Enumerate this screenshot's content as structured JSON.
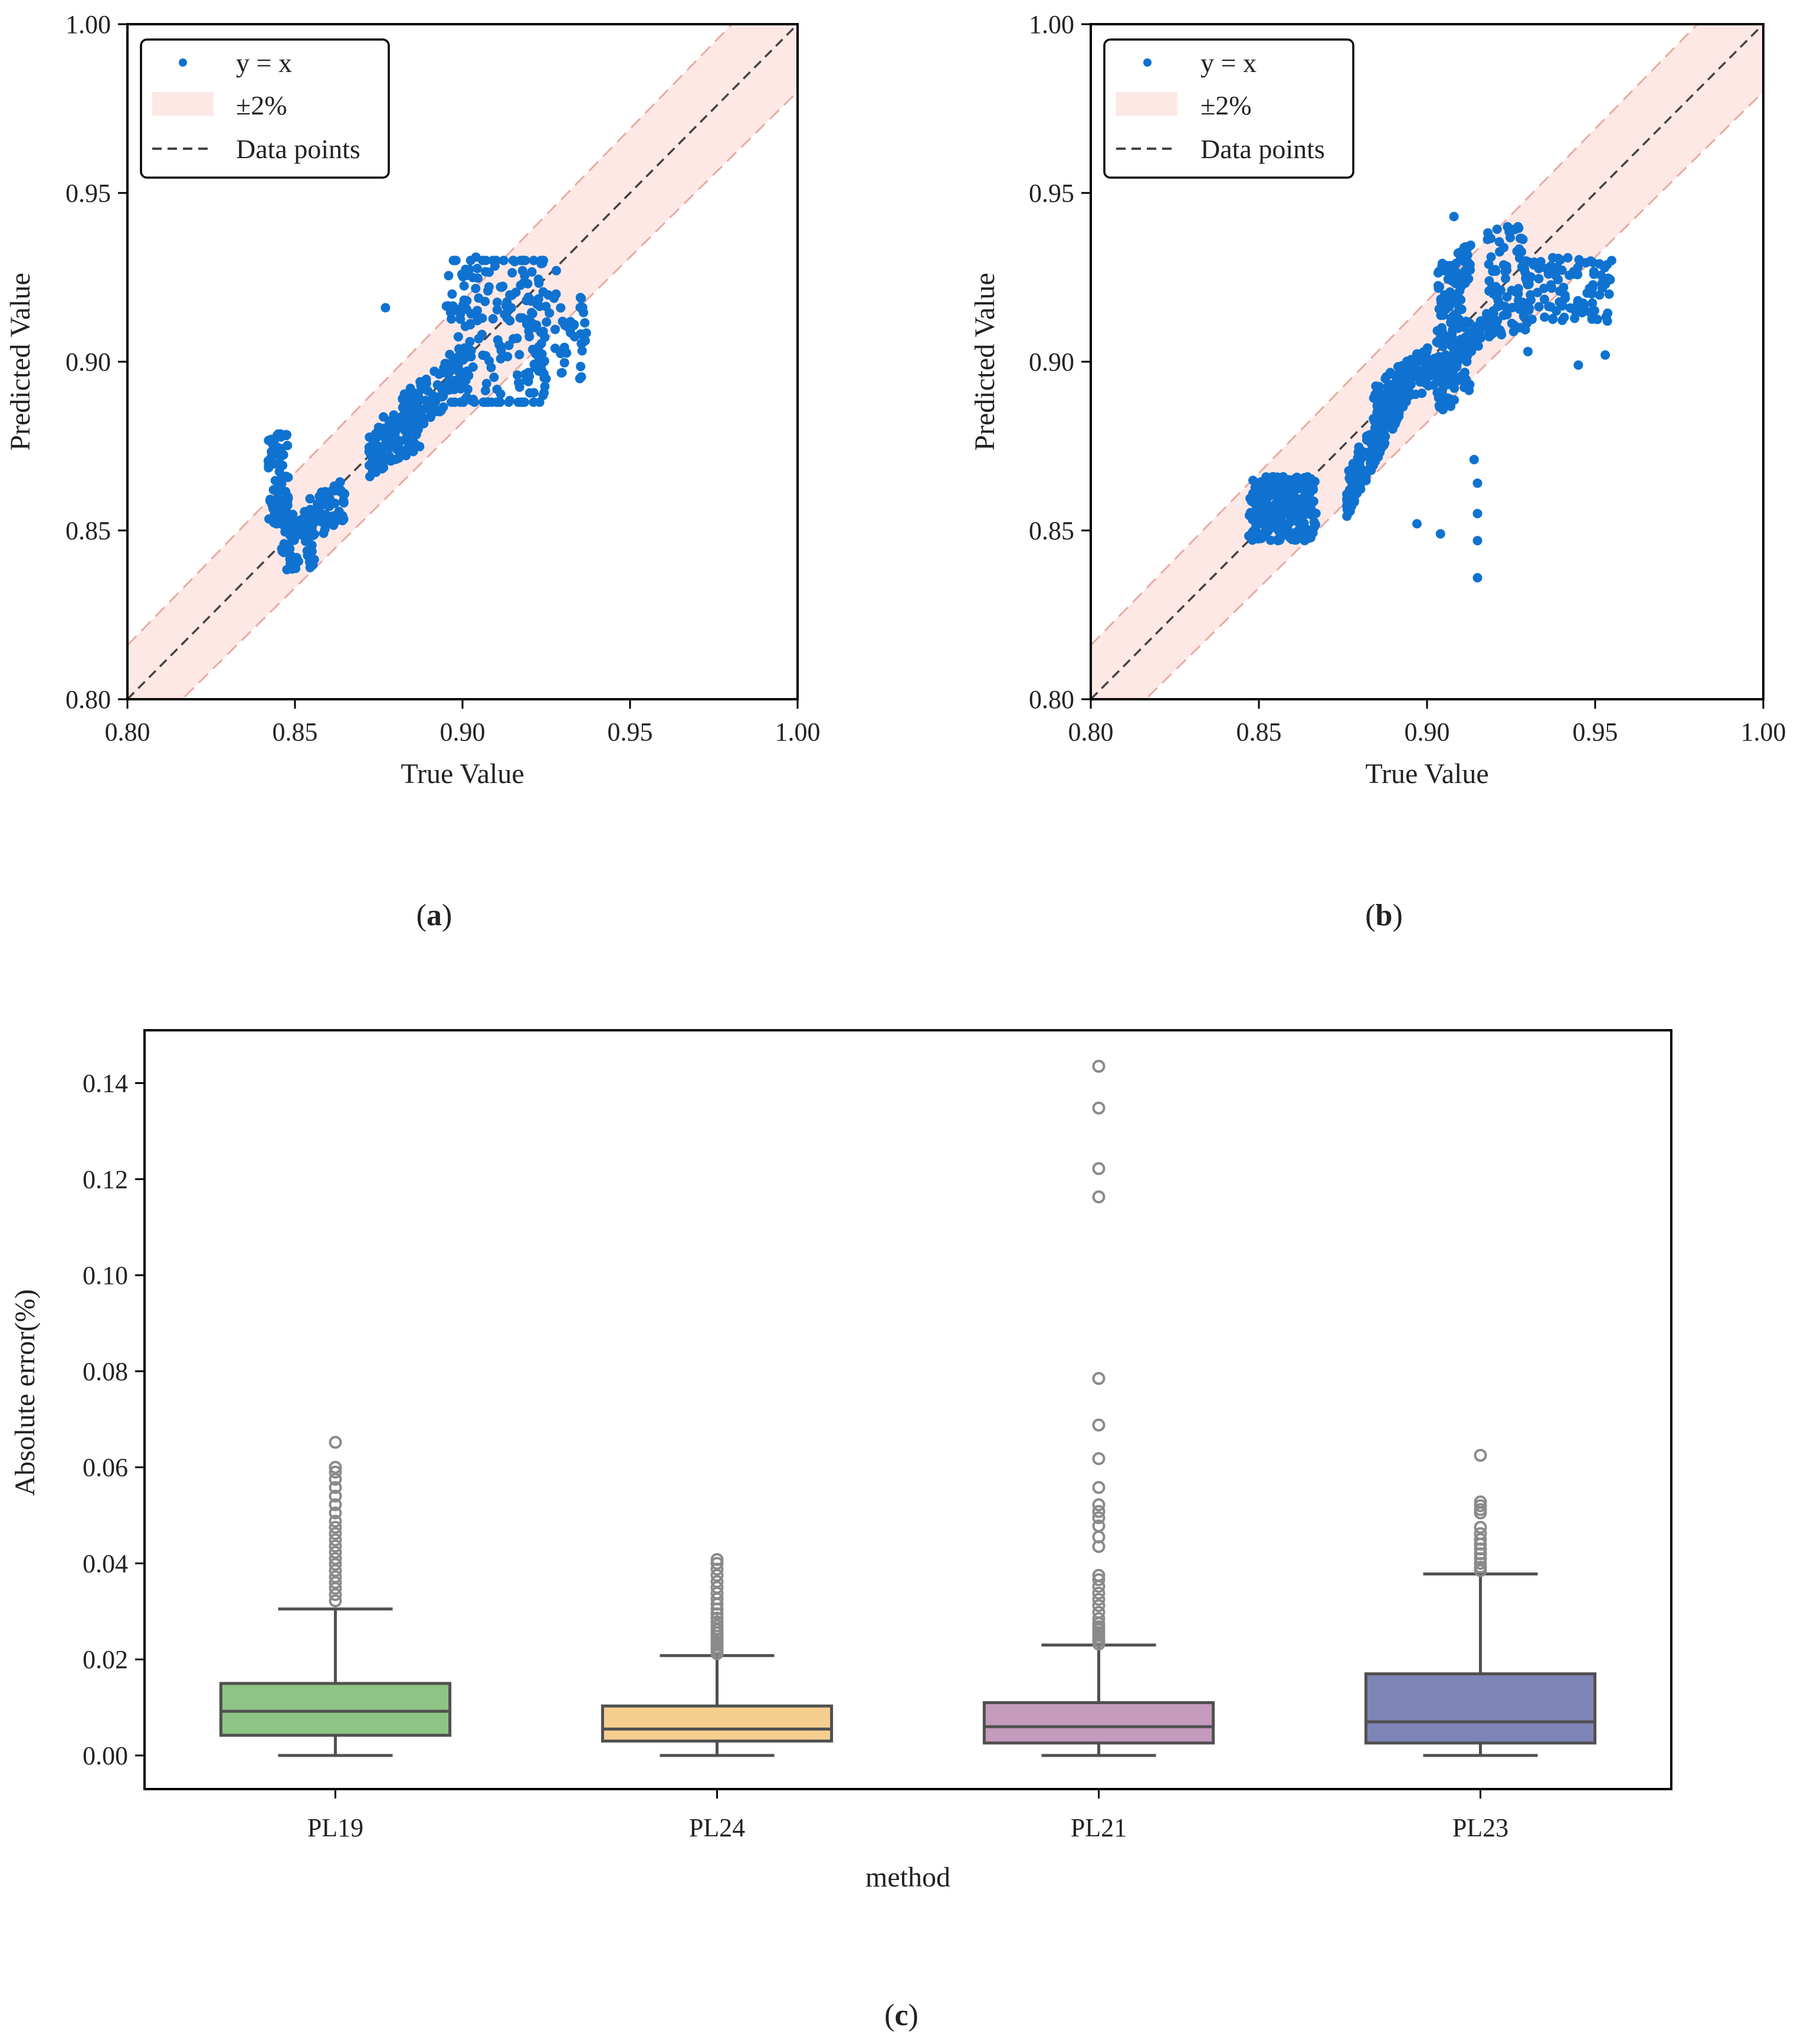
{
  "figure": {
    "captions": [
      {
        "open": "(",
        "letter": "a",
        "close": ")"
      },
      {
        "open": "(",
        "letter": "b",
        "close": ")"
      },
      {
        "open": "(",
        "letter": "c",
        "close": ")"
      }
    ]
  },
  "colors": {
    "points": "#0f72d0",
    "band_fill": "#fde8e6",
    "band_edge": "#e9aaa2",
    "identity_line": "#444444",
    "outliers": "#8a8a8a",
    "box_edge": "#505050"
  },
  "chart_data": [
    {
      "id": "a",
      "type": "scatter",
      "title": "",
      "xlabel": "True Value",
      "ylabel": "Predicted Value",
      "xlim": [
        0.8,
        1.0
      ],
      "ylim": [
        0.8,
        1.0
      ],
      "xticks": [
        "0.80",
        "0.85",
        "0.90",
        "0.95",
        "1.00"
      ],
      "yticks": [
        "0.80",
        "0.85",
        "0.90",
        "0.95",
        "1.00"
      ],
      "band_percent": 2,
      "legend": {
        "position": "top-left",
        "entries": [
          "y = x",
          "±2%",
          "Data points"
        ]
      },
      "clusters": [
        {
          "x": [
            0.842,
            0.848
          ],
          "y": [
            0.85,
            0.879
          ],
          "n": 80,
          "trend": 0
        },
        {
          "x": [
            0.846,
            0.856
          ],
          "y": [
            0.838,
            0.856
          ],
          "n": 60,
          "trend": 0.3
        },
        {
          "x": [
            0.853,
            0.865
          ],
          "y": [
            0.845,
            0.867
          ],
          "n": 70,
          "trend": 0.6
        },
        {
          "x": [
            0.872,
            0.888
          ],
          "y": [
            0.865,
            0.891
          ],
          "n": 120,
          "trend": 0.6
        },
        {
          "x": [
            0.882,
            0.902
          ],
          "y": [
            0.876,
            0.906
          ],
          "n": 110,
          "trend": 0.7
        },
        {
          "x": [
            0.895,
            0.925
          ],
          "y": [
            0.888,
            0.93
          ],
          "n": 190,
          "trend": 0.2
        },
        {
          "x": [
            0.918,
            0.937
          ],
          "y": [
            0.893,
            0.921
          ],
          "n": 60,
          "trend": 0
        }
      ],
      "extra_points": [
        [
          0.877,
          0.916
        ],
        [
          0.904,
          0.931
        ],
        [
          0.928,
          0.927
        ],
        [
          0.935,
          0.895
        ]
      ]
    },
    {
      "id": "b",
      "type": "scatter",
      "title": "",
      "xlabel": "True Value",
      "ylabel": "Predicted Value",
      "xlim": [
        0.8,
        1.0
      ],
      "ylim": [
        0.8,
        1.0
      ],
      "xticks": [
        "0.80",
        "0.85",
        "0.90",
        "0.95",
        "1.00"
      ],
      "yticks": [
        "0.80",
        "0.85",
        "0.90",
        "0.95",
        "1.00"
      ],
      "band_percent": 2,
      "legend": {
        "position": "top-left",
        "entries": [
          "y = x",
          "±2%",
          "Data points"
        ]
      },
      "clusters": [
        {
          "x": [
            0.847,
            0.867
          ],
          "y": [
            0.847,
            0.866
          ],
          "n": 260,
          "trend": 0
        },
        {
          "x": [
            0.876,
            0.892
          ],
          "y": [
            0.852,
            0.9
          ],
          "n": 200,
          "trend": 0.8
        },
        {
          "x": [
            0.884,
            0.906
          ],
          "y": [
            0.88,
            0.909
          ],
          "n": 150,
          "trend": 0.7
        },
        {
          "x": [
            0.903,
            0.913
          ],
          "y": [
            0.885,
            0.935
          ],
          "n": 170,
          "trend": 0.4
        },
        {
          "x": [
            0.908,
            0.922
          ],
          "y": [
            0.898,
            0.918
          ],
          "n": 80,
          "trend": 0.7
        },
        {
          "x": [
            0.918,
            0.93
          ],
          "y": [
            0.908,
            0.94
          ],
          "n": 80,
          "trend": 0.3
        },
        {
          "x": [
            0.928,
            0.955
          ],
          "y": [
            0.912,
            0.931
          ],
          "n": 110,
          "trend": 0
        }
      ],
      "extra_points": [
        [
          0.908,
          0.943
        ],
        [
          0.897,
          0.852
        ],
        [
          0.904,
          0.849
        ],
        [
          0.914,
          0.871
        ],
        [
          0.915,
          0.864
        ],
        [
          0.915,
          0.855
        ],
        [
          0.915,
          0.847
        ],
        [
          0.915,
          0.836
        ],
        [
          0.945,
          0.899
        ],
        [
          0.953,
          0.902
        ],
        [
          0.93,
          0.903
        ]
      ]
    },
    {
      "id": "c",
      "type": "box",
      "title": "",
      "xlabel": "method",
      "ylabel": "Absolute error(%)",
      "ylim": [
        -0.007,
        0.151
      ],
      "yticks": [
        "0.00",
        "0.02",
        "0.04",
        "0.06",
        "0.08",
        "0.10",
        "0.12",
        "0.14"
      ],
      "categories": [
        "PL19",
        "PL24",
        "PL21",
        "PL23"
      ],
      "boxes": [
        {
          "name": "PL19",
          "color": "#8ec485",
          "q1": 0.0042,
          "median": 0.0092,
          "q3": 0.015,
          "whisker_low": 0.0,
          "whisker_high": 0.0305,
          "outliers": [
            0.0322,
            0.0335,
            0.0348,
            0.036,
            0.0372,
            0.0385,
            0.0398,
            0.041,
            0.0423,
            0.0436,
            0.0449,
            0.0462,
            0.0475,
            0.0488,
            0.0505,
            0.0522,
            0.054,
            0.0558,
            0.0575,
            0.059,
            0.06,
            0.0652
          ]
        },
        {
          "name": "PL24",
          "color": "#f6cf8f",
          "q1": 0.003,
          "median": 0.0055,
          "q3": 0.0103,
          "whisker_low": 0.0,
          "whisker_high": 0.0208,
          "outliers": [
            0.0212,
            0.0218,
            0.0224,
            0.023,
            0.0236,
            0.0242,
            0.0248,
            0.0255,
            0.0262,
            0.027,
            0.0278,
            0.0286,
            0.0295,
            0.0305,
            0.0315,
            0.0326,
            0.0338,
            0.035,
            0.0362,
            0.0375,
            0.0388,
            0.04,
            0.0408
          ]
        },
        {
          "name": "PL21",
          "color": "#c49bbd",
          "q1": 0.0026,
          "median": 0.006,
          "q3": 0.011,
          "whisker_low": 0.0,
          "whisker_high": 0.023,
          "outliers": [
            0.0232,
            0.0238,
            0.0244,
            0.025,
            0.0256,
            0.0262,
            0.0268,
            0.0275,
            0.0285,
            0.0298,
            0.0312,
            0.0325,
            0.0338,
            0.0352,
            0.0366,
            0.0375,
            0.0435,
            0.0455,
            0.0478,
            0.0495,
            0.0508,
            0.0522,
            0.0558,
            0.0618,
            0.0688,
            0.0785,
            0.1163,
            0.1222,
            0.1348,
            0.1435
          ]
        },
        {
          "name": "PL23",
          "color": "#7f84b7",
          "q1": 0.0026,
          "median": 0.007,
          "q3": 0.017,
          "whisker_low": 0.0,
          "whisker_high": 0.0378,
          "outliers": [
            0.0385,
            0.0392,
            0.04,
            0.041,
            0.042,
            0.043,
            0.044,
            0.045,
            0.0462,
            0.0475,
            0.0505,
            0.0512,
            0.052,
            0.0528,
            0.0625
          ]
        }
      ]
    }
  ]
}
